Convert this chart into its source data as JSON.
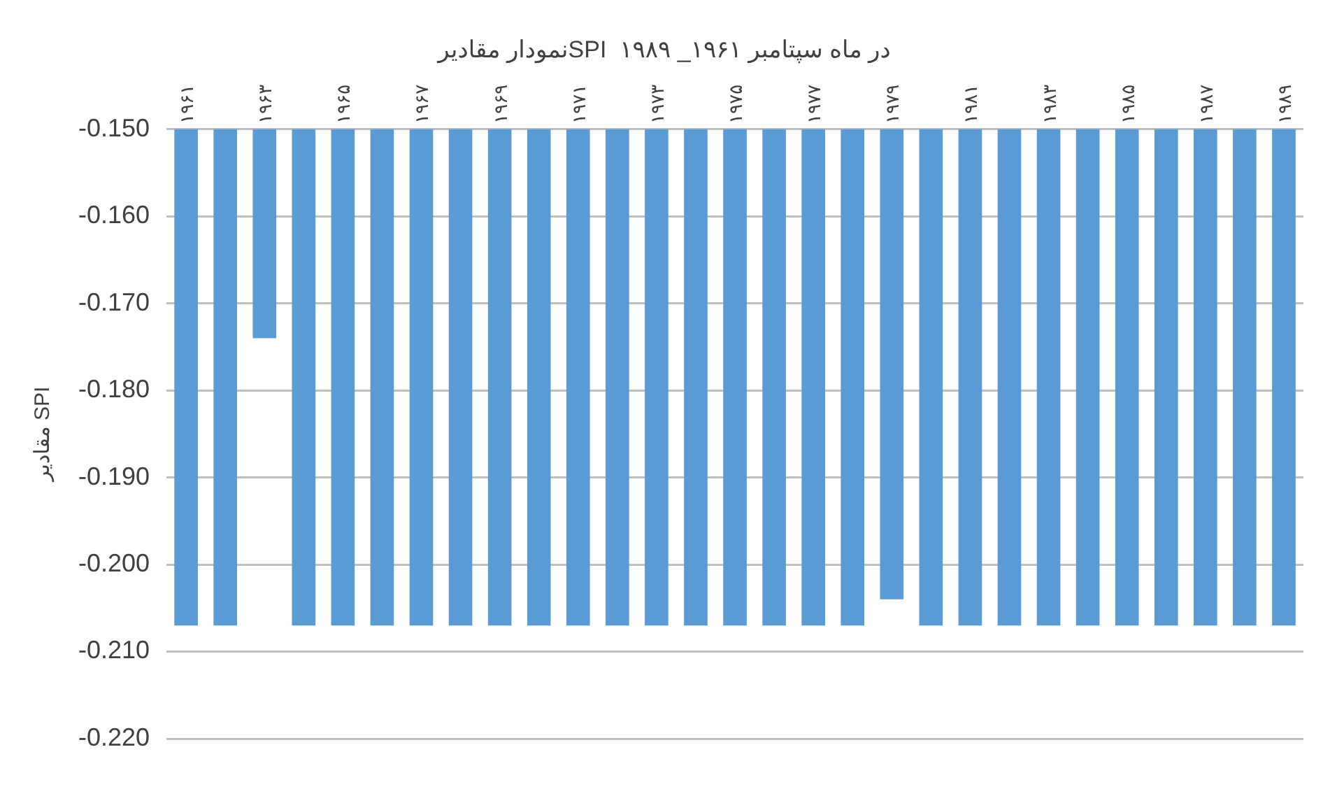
{
  "chart_data": {
    "type": "bar",
    "title": "نمودار مقادیرSPI  در ماه سپتامبر ۱۹۶۱_ ۱۹۸۹",
    "ylabel": "مقادیر SPI",
    "categories": [
      "۱۹۶۱",
      null,
      "۱۹۶۳",
      null,
      "۱۹۶۵",
      null,
      "۱۹۶۷",
      null,
      "۱۹۶۹",
      null,
      "۱۹۷۱",
      null,
      "۱۹۷۳",
      null,
      "۱۹۷۵",
      null,
      "۱۹۷۷",
      null,
      "۱۹۷۹",
      null,
      "۱۹۸۱",
      null,
      "۱۹۸۳",
      null,
      "۱۹۸۵",
      null,
      "۱۹۸۷",
      null,
      "۱۹۸۹"
    ],
    "values": [
      -0.207,
      -0.207,
      -0.174,
      -0.207,
      -0.207,
      -0.207,
      -0.207,
      -0.207,
      -0.207,
      -0.207,
      -0.207,
      -0.207,
      -0.207,
      -0.207,
      -0.207,
      -0.207,
      -0.207,
      -0.207,
      -0.204,
      -0.207,
      -0.207,
      -0.207,
      -0.207,
      -0.207,
      -0.207,
      -0.207,
      -0.207,
      -0.207,
      -0.207
    ],
    "color": "#5b9bd5",
    "ylim": [
      -0.22,
      -0.15
    ],
    "yticks": [
      {
        "value": -0.22,
        "label": "-0.220"
      },
      {
        "value": -0.21,
        "label": "-0.210"
      },
      {
        "value": -0.2,
        "label": "-0.200"
      },
      {
        "value": -0.19,
        "label": "-0.190"
      },
      {
        "value": -0.18,
        "label": "-0.180"
      },
      {
        "value": -0.17,
        "label": "-0.170"
      },
      {
        "value": -0.16,
        "label": "-0.160"
      },
      {
        "value": -0.15,
        "label": "-0.150"
      }
    ],
    "grid": "y",
    "legend": false
  }
}
